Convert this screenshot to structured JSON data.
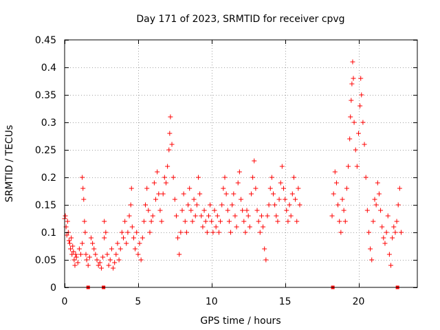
{
  "chart_data": {
    "type": "scatter",
    "title": "Day 171 of 2023, SRMTID for receiver cpvg",
    "xlabel": "GPS time / hours",
    "ylabel": "SRMTID / TECUs",
    "xlim": [
      0,
      24
    ],
    "ylim": [
      0,
      0.45
    ],
    "xticks": [
      0,
      5,
      10,
      15,
      20
    ],
    "xtick_labels": [
      "0",
      "5",
      "10",
      "15",
      "20"
    ],
    "yticks": [
      0,
      0.05,
      0.1,
      0.15,
      0.2,
      0.25,
      0.3,
      0.35,
      0.4,
      0.45
    ],
    "ytick_labels": [
      "0",
      "0.05",
      "0.1",
      "0.15",
      "0.2",
      "0.25",
      "0.3",
      "0.35",
      "0.4",
      "0.45"
    ],
    "grid": true,
    "marker": "+",
    "color": "#ff0000",
    "series": [
      {
        "name": "SRMTID",
        "points": [
          [
            0.0,
            0.125
          ],
          [
            0.05,
            0.13
          ],
          [
            0.1,
            0.11
          ],
          [
            0.15,
            0.095
          ],
          [
            0.2,
            0.12
          ],
          [
            0.25,
            0.1
          ],
          [
            0.3,
            0.085
          ],
          [
            0.35,
            0.08
          ],
          [
            0.4,
            0.07
          ],
          [
            0.45,
            0.09
          ],
          [
            0.5,
            0.06
          ],
          [
            0.55,
            0.075
          ],
          [
            0.6,
            0.065
          ],
          [
            0.65,
            0.05
          ],
          [
            0.7,
            0.04
          ],
          [
            0.75,
            0.06
          ],
          [
            0.8,
            0.055
          ],
          [
            0.9,
            0.045
          ],
          [
            1.0,
            0.07
          ],
          [
            1.1,
            0.06
          ],
          [
            1.2,
            0.08
          ],
          [
            1.2,
            0.2
          ],
          [
            1.25,
            0.18
          ],
          [
            1.3,
            0.16
          ],
          [
            1.35,
            0.12
          ],
          [
            1.4,
            0.1
          ],
          [
            1.45,
            0.06
          ],
          [
            1.5,
            0.05
          ],
          [
            1.6,
            0.04
          ],
          [
            1.7,
            0.055
          ],
          [
            1.8,
            0.09
          ],
          [
            1.9,
            0.08
          ],
          [
            2.0,
            0.07
          ],
          [
            2.1,
            0.06
          ],
          [
            2.2,
            0.05
          ],
          [
            2.3,
            0.04
          ],
          [
            2.4,
            0.045
          ],
          [
            2.5,
            0.035
          ],
          [
            2.6,
            0.055
          ],
          [
            2.7,
            0.09
          ],
          [
            2.7,
            0.12
          ],
          [
            2.8,
            0.1
          ],
          [
            2.9,
            0.06
          ],
          [
            3.0,
            0.04
          ],
          [
            3.1,
            0.05
          ],
          [
            3.2,
            0.07
          ],
          [
            3.3,
            0.035
          ],
          [
            3.4,
            0.045
          ],
          [
            3.5,
            0.06
          ],
          [
            3.6,
            0.08
          ],
          [
            3.7,
            0.05
          ],
          [
            3.8,
            0.07
          ],
          [
            3.9,
            0.1
          ],
          [
            4.0,
            0.09
          ],
          [
            4.1,
            0.12
          ],
          [
            4.2,
            0.08
          ],
          [
            4.3,
            0.1
          ],
          [
            4.4,
            0.13
          ],
          [
            4.5,
            0.15
          ],
          [
            4.55,
            0.18
          ],
          [
            4.6,
            0.11
          ],
          [
            4.7,
            0.09
          ],
          [
            4.8,
            0.07
          ],
          [
            4.9,
            0.1
          ],
          [
            5.0,
            0.06
          ],
          [
            5.1,
            0.08
          ],
          [
            5.2,
            0.05
          ],
          [
            5.3,
            0.09
          ],
          [
            5.4,
            0.12
          ],
          [
            5.5,
            0.15
          ],
          [
            5.6,
            0.18
          ],
          [
            5.7,
            0.14
          ],
          [
            5.8,
            0.1
          ],
          [
            5.9,
            0.12
          ],
          [
            6.0,
            0.13
          ],
          [
            6.1,
            0.19
          ],
          [
            6.2,
            0.16
          ],
          [
            6.3,
            0.21
          ],
          [
            6.4,
            0.17
          ],
          [
            6.5,
            0.14
          ],
          [
            6.6,
            0.12
          ],
          [
            6.7,
            0.17
          ],
          [
            6.8,
            0.2
          ],
          [
            6.9,
            0.19
          ],
          [
            7.0,
            0.22
          ],
          [
            7.1,
            0.25
          ],
          [
            7.15,
            0.28
          ],
          [
            7.2,
            0.31
          ],
          [
            7.3,
            0.26
          ],
          [
            7.4,
            0.2
          ],
          [
            7.5,
            0.16
          ],
          [
            7.6,
            0.13
          ],
          [
            7.7,
            0.09
          ],
          [
            7.8,
            0.06
          ],
          [
            7.9,
            0.1
          ],
          [
            8.0,
            0.14
          ],
          [
            8.1,
            0.17
          ],
          [
            8.2,
            0.12
          ],
          [
            8.3,
            0.1
          ],
          [
            8.4,
            0.15
          ],
          [
            8.5,
            0.18
          ],
          [
            8.6,
            0.14
          ],
          [
            8.7,
            0.12
          ],
          [
            8.8,
            0.16
          ],
          [
            8.9,
            0.13
          ],
          [
            9.0,
            0.15
          ],
          [
            9.1,
            0.2
          ],
          [
            9.2,
            0.17
          ],
          [
            9.3,
            0.13
          ],
          [
            9.4,
            0.11
          ],
          [
            9.5,
            0.14
          ],
          [
            9.6,
            0.12
          ],
          [
            9.7,
            0.1
          ],
          [
            9.8,
            0.13
          ],
          [
            9.9,
            0.15
          ],
          [
            10.0,
            0.12
          ],
          [
            10.1,
            0.1
          ],
          [
            10.2,
            0.14
          ],
          [
            10.3,
            0.11
          ],
          [
            10.4,
            0.13
          ],
          [
            10.5,
            0.1
          ],
          [
            10.6,
            0.12
          ],
          [
            10.7,
            0.15
          ],
          [
            10.8,
            0.18
          ],
          [
            10.9,
            0.2
          ],
          [
            11.0,
            0.17
          ],
          [
            11.1,
            0.14
          ],
          [
            11.2,
            0.12
          ],
          [
            11.3,
            0.1
          ],
          [
            11.4,
            0.15
          ],
          [
            11.5,
            0.17
          ],
          [
            11.6,
            0.13
          ],
          [
            11.7,
            0.11
          ],
          [
            11.8,
            0.19
          ],
          [
            11.9,
            0.21
          ],
          [
            12.0,
            0.16
          ],
          [
            12.1,
            0.14
          ],
          [
            12.2,
            0.12
          ],
          [
            12.3,
            0.1
          ],
          [
            12.4,
            0.14
          ],
          [
            12.5,
            0.13
          ],
          [
            12.6,
            0.11
          ],
          [
            12.7,
            0.17
          ],
          [
            12.8,
            0.2
          ],
          [
            12.9,
            0.23
          ],
          [
            13.0,
            0.18
          ],
          [
            13.1,
            0.14
          ],
          [
            13.2,
            0.12
          ],
          [
            13.3,
            0.1
          ],
          [
            13.4,
            0.13
          ],
          [
            13.5,
            0.11
          ],
          [
            13.6,
            0.07
          ],
          [
            13.7,
            0.05
          ],
          [
            13.8,
            0.13
          ],
          [
            13.9,
            0.15
          ],
          [
            14.0,
            0.18
          ],
          [
            14.1,
            0.2
          ],
          [
            14.2,
            0.17
          ],
          [
            14.3,
            0.15
          ],
          [
            14.4,
            0.13
          ],
          [
            14.5,
            0.12
          ],
          [
            14.6,
            0.16
          ],
          [
            14.7,
            0.19
          ],
          [
            14.8,
            0.22
          ],
          [
            14.9,
            0.18
          ],
          [
            15.0,
            0.16
          ],
          [
            15.1,
            0.14
          ],
          [
            15.2,
            0.12
          ],
          [
            15.3,
            0.15
          ],
          [
            15.4,
            0.13
          ],
          [
            15.5,
            0.17
          ],
          [
            15.6,
            0.2
          ],
          [
            15.7,
            0.16
          ],
          [
            15.8,
            0.12
          ],
          [
            15.9,
            0.18
          ],
          [
            16.0,
            0.15
          ],
          [
            18.2,
            0.13
          ],
          [
            18.3,
            0.17
          ],
          [
            18.4,
            0.21
          ],
          [
            18.5,
            0.19
          ],
          [
            18.6,
            0.15
          ],
          [
            18.7,
            0.12
          ],
          [
            18.8,
            0.1
          ],
          [
            18.9,
            0.16
          ],
          [
            19.0,
            0.14
          ],
          [
            19.1,
            0.12
          ],
          [
            19.2,
            0.18
          ],
          [
            19.3,
            0.22
          ],
          [
            19.4,
            0.27
          ],
          [
            19.45,
            0.31
          ],
          [
            19.5,
            0.34
          ],
          [
            19.55,
            0.37
          ],
          [
            19.6,
            0.41
          ],
          [
            19.65,
            0.38
          ],
          [
            19.7,
            0.3
          ],
          [
            19.8,
            0.25
          ],
          [
            19.9,
            0.22
          ],
          [
            20.0,
            0.28
          ],
          [
            20.1,
            0.33
          ],
          [
            20.15,
            0.38
          ],
          [
            20.2,
            0.35
          ],
          [
            20.3,
            0.3
          ],
          [
            20.4,
            0.26
          ],
          [
            20.5,
            0.2
          ],
          [
            20.6,
            0.14
          ],
          [
            20.7,
            0.1
          ],
          [
            20.8,
            0.07
          ],
          [
            20.9,
            0.05
          ],
          [
            21.0,
            0.12
          ],
          [
            21.1,
            0.16
          ],
          [
            21.2,
            0.15
          ],
          [
            21.3,
            0.19
          ],
          [
            21.4,
            0.17
          ],
          [
            21.5,
            0.14
          ],
          [
            21.6,
            0.11
          ],
          [
            21.7,
            0.09
          ],
          [
            21.8,
            0.08
          ],
          [
            21.9,
            0.1
          ],
          [
            22.0,
            0.13
          ],
          [
            22.1,
            0.06
          ],
          [
            22.2,
            0.04
          ],
          [
            22.3,
            0.09
          ],
          [
            22.4,
            0.11
          ],
          [
            22.5,
            0.1
          ],
          [
            22.6,
            0.12
          ],
          [
            22.7,
            0.15
          ],
          [
            22.8,
            0.18
          ],
          [
            22.9,
            0.1
          ]
        ]
      }
    ],
    "axis_markers": [
      1.6,
      2.65,
      18.25,
      22.65
    ]
  }
}
